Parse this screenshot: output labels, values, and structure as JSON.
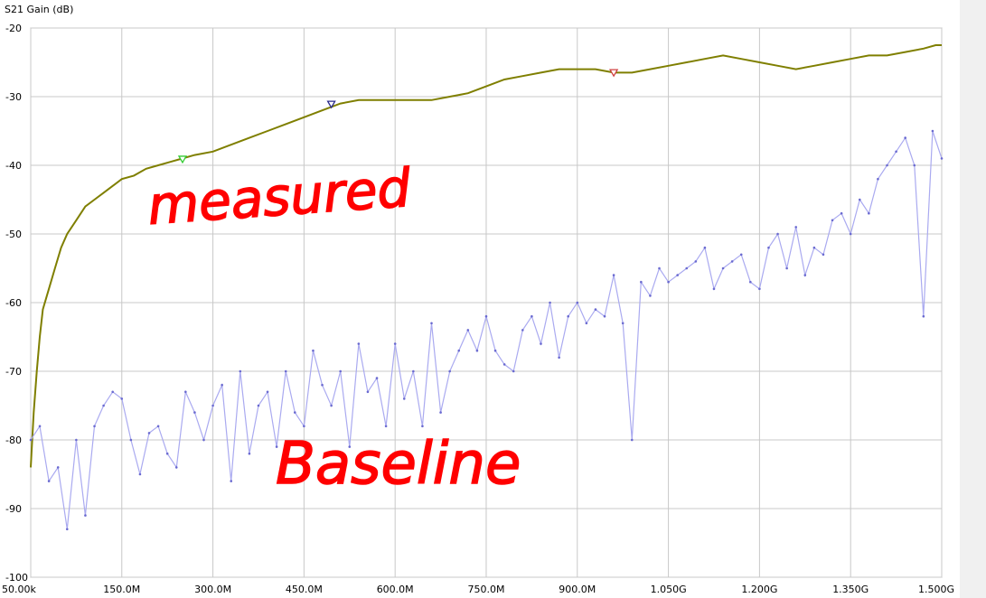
{
  "chart_data": {
    "type": "line",
    "ylabel": "S21 Gain (dB)",
    "xlabel": "",
    "ylim": [
      -100,
      -20
    ],
    "xlim": [
      0.05,
      1500
    ],
    "x_unit": "MHz",
    "grid": true,
    "x_ticks": [
      {
        "value": 0.05,
        "label": "50.00k"
      },
      {
        "value": 150,
        "label": "150.0M"
      },
      {
        "value": 300,
        "label": "300.0M"
      },
      {
        "value": 450,
        "label": "450.0M"
      },
      {
        "value": 600,
        "label": "600.0M"
      },
      {
        "value": 750,
        "label": "750.0M"
      },
      {
        "value": 900,
        "label": "900.0M"
      },
      {
        "value": 1050,
        "label": "1.050G"
      },
      {
        "value": 1200,
        "label": "1.200G"
      },
      {
        "value": 1350,
        "label": "1.350G"
      },
      {
        "value": 1500,
        "label": "1.500G"
      }
    ],
    "y_ticks": [
      {
        "value": -20,
        "label": "-20"
      },
      {
        "value": -30,
        "label": "-30"
      },
      {
        "value": -40,
        "label": "-40"
      },
      {
        "value": -50,
        "label": "-50"
      },
      {
        "value": -60,
        "label": "-60"
      },
      {
        "value": -70,
        "label": "-70"
      },
      {
        "value": -80,
        "label": "-80"
      },
      {
        "value": -90,
        "label": "-90"
      },
      {
        "value": -100,
        "label": "-100"
      }
    ],
    "series": [
      {
        "color": "#7f7f00",
        "style": "line",
        "x": [
          0.05,
          5,
          10,
          15,
          20,
          30,
          40,
          50,
          60,
          75,
          90,
          105,
          120,
          135,
          150,
          170,
          190,
          210,
          230,
          250,
          270,
          300,
          330,
          360,
          390,
          420,
          450,
          480,
          510,
          540,
          570,
          600,
          630,
          660,
          690,
          720,
          750,
          780,
          810,
          840,
          870,
          900,
          930,
          960,
          990,
          1020,
          1050,
          1080,
          1110,
          1140,
          1170,
          1200,
          1230,
          1260,
          1290,
          1320,
          1350,
          1380,
          1410,
          1440,
          1470,
          1490,
          1500
        ],
        "values": [
          -84,
          -76,
          -70,
          -65,
          -61,
          -58,
          -55,
          -52,
          -50,
          -48,
          -46,
          -45,
          -44,
          -43,
          -42,
          -41.5,
          -40.5,
          -40,
          -39.5,
          -39,
          -38.5,
          -38,
          -37,
          -36,
          -35,
          -34,
          -33,
          -32,
          -31,
          -30.5,
          -30.5,
          -30.5,
          -30.5,
          -30.5,
          -30,
          -29.5,
          -28.5,
          -27.5,
          -27,
          -26.5,
          -26,
          -26,
          -26,
          -26.5,
          -26.5,
          -26,
          -25.5,
          -25,
          -24.5,
          -24,
          -24.5,
          -25,
          -25.5,
          -26,
          -25.5,
          -25,
          -24.5,
          -24,
          -24,
          -23.5,
          -23,
          -22.5,
          -22.5
        ]
      },
      {
        "color": "#aaaaf0",
        "style": "noisy-line",
        "x": [
          0.05,
          15,
          30,
          45,
          60,
          75,
          90,
          105,
          120,
          135,
          150,
          165,
          180,
          195,
          210,
          225,
          240,
          255,
          270,
          285,
          300,
          315,
          330,
          345,
          360,
          375,
          390,
          405,
          420,
          435,
          450,
          465,
          480,
          495,
          510,
          525,
          540,
          555,
          570,
          585,
          600,
          615,
          630,
          645,
          660,
          675,
          690,
          705,
          720,
          735,
          750,
          765,
          780,
          795,
          810,
          825,
          840,
          855,
          870,
          885,
          900,
          915,
          930,
          945,
          960,
          975,
          990,
          1005,
          1020,
          1035,
          1050,
          1065,
          1080,
          1095,
          1110,
          1125,
          1140,
          1155,
          1170,
          1185,
          1200,
          1215,
          1230,
          1245,
          1260,
          1275,
          1290,
          1305,
          1320,
          1335,
          1350,
          1365,
          1380,
          1395,
          1410,
          1425,
          1440,
          1455,
          1470,
          1485,
          1500
        ],
        "values": [
          -80,
          -78,
          -86,
          -84,
          -93,
          -80,
          -91,
          -78,
          -75,
          -73,
          -74,
          -80,
          -85,
          -79,
          -78,
          -82,
          -84,
          -73,
          -76,
          -80,
          -75,
          -72,
          -86,
          -70,
          -82,
          -75,
          -73,
          -81,
          -70,
          -76,
          -78,
          -67,
          -72,
          -75,
          -70,
          -81,
          -66,
          -73,
          -71,
          -78,
          -66,
          -74,
          -70,
          -78,
          -63,
          -76,
          -70,
          -67,
          -64,
          -67,
          -62,
          -67,
          -69,
          -70,
          -64,
          -62,
          -66,
          -60,
          -68,
          -62,
          -60,
          -63,
          -61,
          -62,
          -56,
          -63,
          -80,
          -57,
          -59,
          -55,
          -57,
          -56,
          -55,
          -54,
          -52,
          -58,
          -55,
          -54,
          -53,
          -57,
          -58,
          -52,
          -50,
          -55,
          -49,
          -56,
          -52,
          -53,
          -48,
          -47,
          -50,
          -45,
          -47,
          -42,
          -40,
          -38,
          -36,
          -40,
          -62,
          -35,
          -39
        ]
      }
    ],
    "markers": [
      {
        "x": 250,
        "y": -39.2,
        "color": "#33cc33"
      },
      {
        "x": 495,
        "y": -31.2,
        "color": "#2a2a8a"
      },
      {
        "x": 960,
        "y": -26.6,
        "color": "#d04040"
      }
    ],
    "annotations": [
      {
        "text": "measured",
        "color": "#ff0000"
      },
      {
        "text": "Baseline",
        "color": "#ff0000"
      }
    ]
  }
}
